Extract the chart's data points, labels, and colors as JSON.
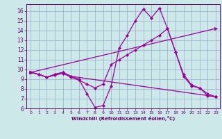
{
  "xlabel": "Windchill (Refroidissement éolien,°C)",
  "xlim": [
    -0.5,
    23.5
  ],
  "ylim": [
    6,
    16.7
  ],
  "yticks": [
    6,
    7,
    8,
    9,
    10,
    11,
    12,
    13,
    14,
    15,
    16
  ],
  "xticks": [
    0,
    1,
    2,
    3,
    4,
    5,
    6,
    7,
    8,
    9,
    10,
    11,
    12,
    13,
    14,
    15,
    16,
    17,
    18,
    19,
    20,
    21,
    22,
    23
  ],
  "bg_color": "#cce8e8",
  "line_color": "#990099",
  "grid_color": "#99aacc",
  "line1_x": [
    0,
    1,
    2,
    3,
    4,
    5,
    6,
    7,
    8,
    9,
    10,
    11,
    12,
    13,
    14,
    15,
    16,
    17,
    18,
    19,
    20,
    21,
    22,
    23
  ],
  "line1_y": [
    9.7,
    9.5,
    9.2,
    9.5,
    9.7,
    9.3,
    9.0,
    7.5,
    6.1,
    6.3,
    8.3,
    12.2,
    13.5,
    15.0,
    16.2,
    15.3,
    16.3,
    14.2,
    11.8,
    9.3,
    8.3,
    8.1,
    7.3,
    7.2
  ],
  "line2_x": [
    0,
    1,
    2,
    3,
    4,
    5,
    23
  ],
  "line2_y": [
    9.7,
    9.5,
    9.2,
    9.5,
    9.7,
    9.3,
    7.2
  ],
  "line3_x": [
    0,
    1,
    2,
    3,
    4,
    5,
    6,
    7,
    8,
    9,
    10,
    11,
    12,
    13,
    14,
    15,
    16,
    17,
    18,
    19,
    20,
    21,
    22,
    23
  ],
  "line3_y": [
    9.7,
    9.5,
    9.2,
    9.4,
    9.6,
    9.2,
    8.9,
    8.5,
    8.1,
    8.5,
    10.5,
    11.0,
    11.5,
    12.0,
    12.5,
    13.0,
    13.5,
    14.2,
    11.8,
    9.5,
    8.4,
    8.1,
    7.5,
    7.2
  ],
  "line4_x": [
    0,
    23
  ],
  "line4_y": [
    9.7,
    14.2
  ]
}
